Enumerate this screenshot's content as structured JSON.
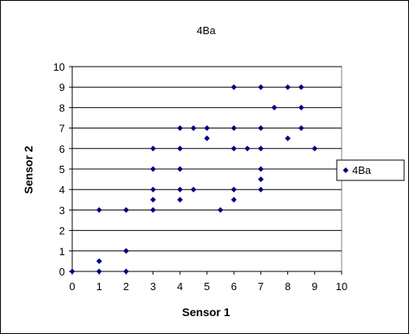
{
  "chart_data": {
    "type": "scatter",
    "title": "4Ba",
    "xlabel": "Sensor 1",
    "ylabel": "Sensor 2",
    "xlim": [
      0,
      10
    ],
    "ylim": [
      0,
      10
    ],
    "xticks": [
      "0",
      "1",
      "2",
      "3",
      "4",
      "5",
      "6",
      "7",
      "8",
      "9",
      "10"
    ],
    "yticks": [
      "0",
      "1",
      "2",
      "3",
      "4",
      "5",
      "6",
      "7",
      "8",
      "9",
      "10"
    ],
    "grid": "horizontal major gridlines",
    "legend_position": "right",
    "series": [
      {
        "name": "4Ba",
        "color": "#000080",
        "marker": "diamond",
        "points": [
          [
            0,
            0
          ],
          [
            1,
            0
          ],
          [
            1,
            0.5
          ],
          [
            1,
            3
          ],
          [
            2,
            0
          ],
          [
            2,
            1
          ],
          [
            2,
            3
          ],
          [
            3,
            3
          ],
          [
            3,
            3.5
          ],
          [
            3,
            4
          ],
          [
            3,
            5
          ],
          [
            3,
            6
          ],
          [
            4,
            3.5
          ],
          [
            4,
            4
          ],
          [
            4,
            5
          ],
          [
            4,
            6
          ],
          [
            4,
            7
          ],
          [
            4.5,
            4
          ],
          [
            4.5,
            7
          ],
          [
            5,
            6.5
          ],
          [
            5,
            7
          ],
          [
            5.5,
            3
          ],
          [
            6,
            3.5
          ],
          [
            6,
            4
          ],
          [
            6,
            6
          ],
          [
            6,
            7
          ],
          [
            6,
            9
          ],
          [
            6.5,
            6
          ],
          [
            7,
            4
          ],
          [
            7,
            4.5
          ],
          [
            7,
            5
          ],
          [
            7,
            6
          ],
          [
            7,
            7
          ],
          [
            7,
            9
          ],
          [
            7.5,
            8
          ],
          [
            8,
            6.5
          ],
          [
            8,
            9
          ],
          [
            8.5,
            7
          ],
          [
            8.5,
            8
          ],
          [
            8.5,
            9
          ],
          [
            9,
            6
          ]
        ]
      }
    ]
  }
}
